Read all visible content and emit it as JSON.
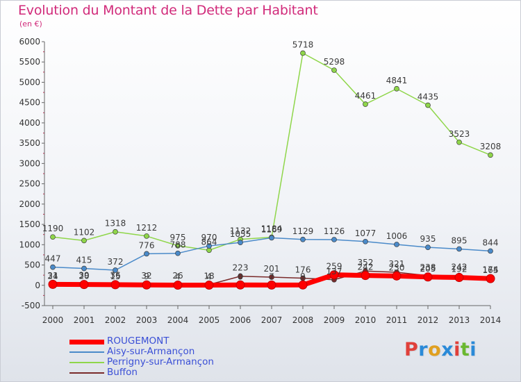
{
  "header": {
    "title": "Evolution du Montant de la Dette par Habitant",
    "unit": "(en €)"
  },
  "brand": {
    "letters": [
      "P",
      "r",
      "o",
      "x",
      "i",
      "t",
      "i"
    ],
    "colors": [
      "#e0403a",
      "#2a8ad8",
      "#e0a020",
      "#2a8ad8",
      "#e0403a",
      "#6ab830",
      "#2a8ad8"
    ]
  },
  "chart_data": {
    "type": "line",
    "x": [
      2000,
      2001,
      2002,
      2003,
      2004,
      2005,
      2006,
      2007,
      2008,
      2009,
      2010,
      2011,
      2012,
      2013,
      2014
    ],
    "ylim": [
      -500,
      6000
    ],
    "y_ticks": [
      -500,
      0,
      500,
      1000,
      1500,
      2000,
      2500,
      3000,
      3500,
      4000,
      4500,
      5000,
      5500,
      6000
    ],
    "grid": false,
    "legend_position": "bottom-left",
    "series": [
      {
        "name": "ROUGEMONT",
        "color": "#ff0000",
        "values": [
          24,
          20,
          15,
          9,
          4,
          4,
          8,
          7,
          9,
          259,
          242,
          230,
          205,
          192,
          165
        ]
      },
      {
        "name": "Aisy-sur-Armançon",
        "color": "#4a8ac9",
        "values": [
          447,
          415,
          372,
          776,
          788,
          970,
          1055,
          1169,
          1129,
          1126,
          1077,
          1006,
          935,
          895,
          844
        ]
      },
      {
        "name": "Perrigny-sur-Armançon",
        "color": "#8fd64a",
        "values": [
          1190,
          1102,
          1318,
          1212,
          975,
          864,
          1132,
          1184,
          5718,
          5298,
          4461,
          4841,
          4435,
          3523,
          3208
        ]
      },
      {
        "name": "Buffon",
        "color": "#7a2a2a",
        "values": [
          31,
          39,
          36,
          32,
          26,
          18,
          223,
          201,
          176,
          137,
          352,
          321,
          238,
          242,
          174
        ]
      }
    ],
    "point_labels": [
      [
        "24",
        "20",
        "15",
        "9",
        "4",
        "4",
        "8",
        "7",
        "9",
        "259",
        "242",
        "230",
        "205",
        "192",
        "165"
      ],
      [
        "447",
        "415",
        "372",
        "776",
        "788",
        "970",
        "1055",
        "1169",
        "1129",
        "1126",
        "1077",
        "1006",
        "935",
        "895",
        "844"
      ],
      [
        "1190",
        "1102",
        "1318",
        "1212",
        "975",
        "864",
        "1132",
        "1184",
        "5718",
        "5298",
        "4461",
        "4841",
        "4435",
        "3523",
        "3208"
      ],
      [
        "31",
        "39",
        "36",
        "32",
        "26",
        "18",
        "223",
        "201",
        "176",
        "137",
        "352",
        "321",
        "238",
        "242",
        "174"
      ]
    ]
  }
}
